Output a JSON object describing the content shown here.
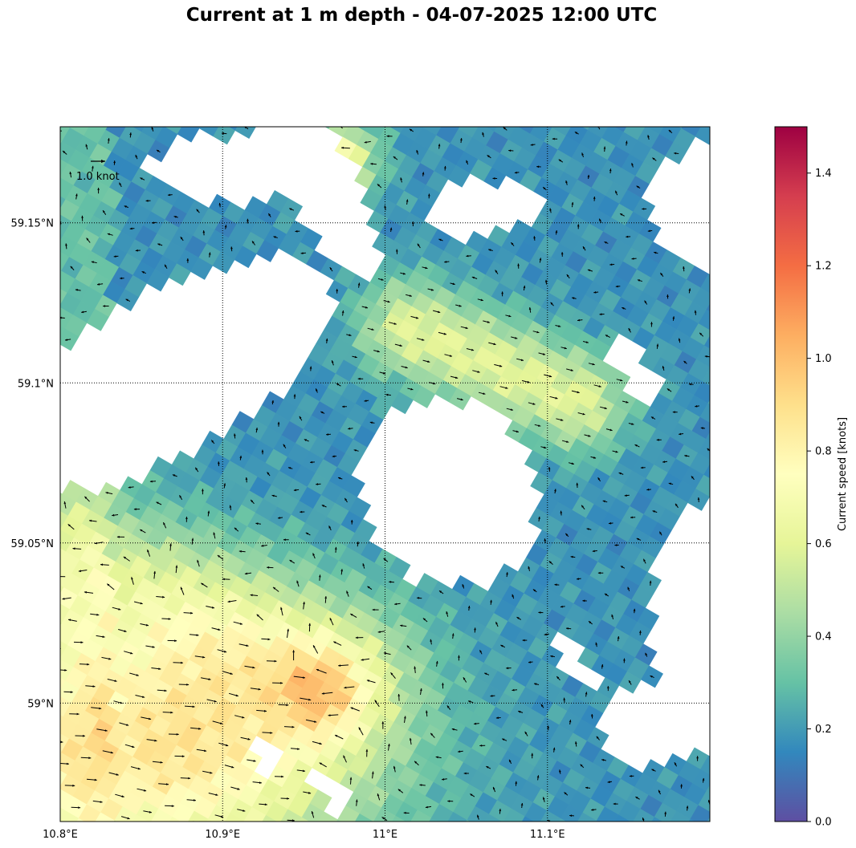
{
  "title": "Current at 1 m depth - 04-07-2025 12:00 UTC",
  "map": {
    "lon_range": [
      10.8,
      11.2
    ],
    "lat_range": [
      58.963,
      59.18
    ],
    "lon_ticks": [
      {
        "value": 10.8,
        "label": "10.8°E"
      },
      {
        "value": 10.9,
        "label": "10.9°E"
      },
      {
        "value": 11.0,
        "label": "11°E"
      },
      {
        "value": 11.1,
        "label": "11.1°E"
      }
    ],
    "lat_ticks": [
      {
        "value": 59.15,
        "label": "59.15°N"
      },
      {
        "value": 59.1,
        "label": "59.1°N"
      },
      {
        "value": 59.05,
        "label": "59.05°N"
      },
      {
        "value": 59.0,
        "label": "59°N"
      }
    ],
    "gridlines": "dotted",
    "quiver_key_label": "1.0 knot",
    "quiver_key_speed": 1.0
  },
  "colorbar": {
    "label": "Current speed [knots]",
    "range": [
      0,
      1.5
    ],
    "ticks": [
      "0.0",
      "0.2",
      "0.4",
      "0.6",
      "0.8",
      "1.0",
      "1.2",
      "1.4"
    ],
    "colormap": [
      "#5e4fa2",
      "#3288bd",
      "#66c2a5",
      "#abdda4",
      "#e6f598",
      "#ffffbf",
      "#fee08b",
      "#fdae61",
      "#f46d43",
      "#d53e4f",
      "#9e0142"
    ]
  }
}
